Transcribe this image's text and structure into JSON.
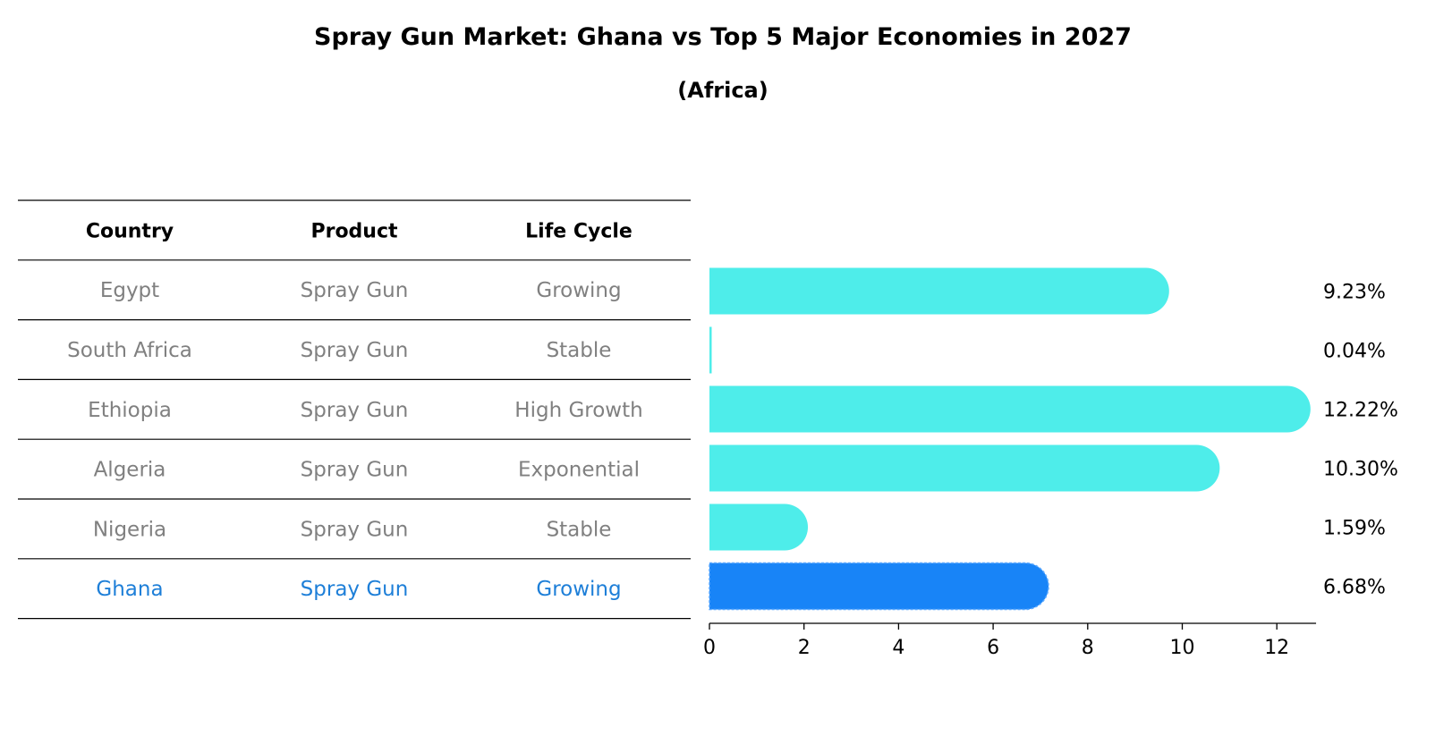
{
  "chart_data": {
    "type": "bar",
    "orientation": "horizontal",
    "title": "Spray Gun Market: Ghana vs Top 5 Major Economies in 2027",
    "subtitle": "(Africa)",
    "table": {
      "headers": [
        "Country",
        "Product",
        "Life Cycle"
      ],
      "rows": [
        {
          "country": "Egypt",
          "product": "Spray Gun",
          "life_cycle": "Growing",
          "highlight": false
        },
        {
          "country": "South Africa",
          "product": "Spray Gun",
          "life_cycle": "Stable",
          "highlight": false
        },
        {
          "country": "Ethiopia",
          "product": "Spray Gun",
          "life_cycle": "High Growth",
          "highlight": false
        },
        {
          "country": "Algeria",
          "product": "Spray Gun",
          "life_cycle": "Exponential",
          "highlight": false
        },
        {
          "country": "Nigeria",
          "product": "Spray Gun",
          "life_cycle": "Stable",
          "highlight": false
        },
        {
          "country": "Ghana",
          "product": "Spray Gun",
          "life_cycle": "Growing",
          "highlight": true
        }
      ]
    },
    "categories": [
      "Egypt",
      "South Africa",
      "Ethiopia",
      "Algeria",
      "Nigeria",
      "Ghana"
    ],
    "values": [
      9.23,
      0.04,
      12.22,
      10.3,
      1.59,
      6.68
    ],
    "value_labels": [
      "9.23%",
      "0.04%",
      "12.22%",
      "10.30%",
      "1.59%",
      "6.68%"
    ],
    "xlim": [
      0,
      12.83
    ],
    "xticks": [
      0,
      2,
      4,
      6,
      8,
      10,
      12
    ],
    "xtick_labels": [
      "0",
      "2",
      "4",
      "6",
      "8",
      "10",
      "12"
    ],
    "xlabel": "",
    "ylabel": "",
    "grid": false,
    "colors": {
      "bar": "#4EEDEA",
      "highlight_bar": "#1884F7",
      "row_text": "#808080",
      "highlight_text": "#1E7FD8",
      "header_text": "#000000",
      "rule": "#000000"
    }
  }
}
